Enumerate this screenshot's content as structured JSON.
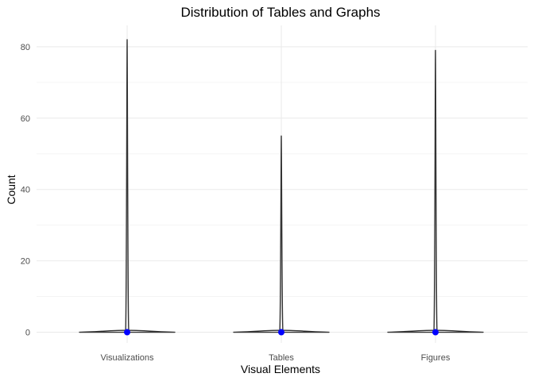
{
  "chart_data": {
    "type": "violin",
    "title": "Distribution of Tables and Graphs",
    "xlabel": "Visual Elements",
    "ylabel": "Count",
    "categories": [
      "Visualizations",
      "Tables",
      "Figures"
    ],
    "distributions": [
      {
        "name": "Visualizations",
        "min": 0,
        "max": 82,
        "median": 0
      },
      {
        "name": "Tables",
        "min": 0,
        "max": 55,
        "median": 0
      },
      {
        "name": "Figures",
        "min": 0,
        "max": 79,
        "median": 0
      }
    ],
    "yticks": [
      0,
      20,
      40,
      60,
      80
    ],
    "ylim": [
      -3,
      86
    ],
    "grid": true,
    "legend": "none",
    "colors": {
      "violin_outline": "#333333",
      "median_point": "#0000ff",
      "grid": "#ebebeb"
    }
  }
}
